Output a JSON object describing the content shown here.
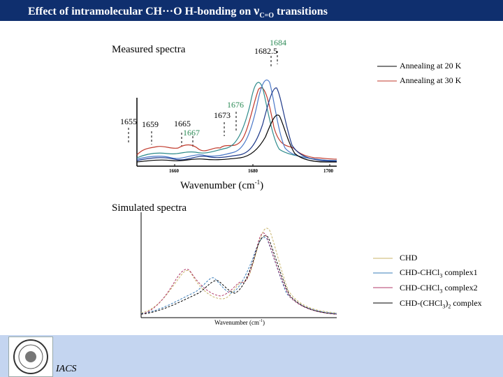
{
  "slide": {
    "title_main": "Effect of intramolecular CH···O H-bonding on ",
    "title_nu": "ν",
    "title_sub": "C=O",
    "title_end": " transitions"
  },
  "measured": {
    "label": "Measured spectra",
    "xlabel": "Wavenumber (cm",
    "xlabel_sup": "-1",
    "xlabel_end": ")",
    "ticks": [
      "1660",
      "1680",
      "1700"
    ],
    "annotations": {
      "a1684": "1684",
      "a1682_5": "1682.5",
      "a1676": "1676",
      "a1673": "1673",
      "a1655": "1655",
      "a1659": "1659",
      "a1665": "1665",
      "a1667": "1667"
    },
    "legend": [
      "Annealing at 20 K",
      "Annealing at 30 K"
    ],
    "colors": {
      "black": "#000000",
      "red": "#c0392b",
      "navy": "#1f3a8a",
      "blue": "#4a78c8",
      "teal": "#2e8b8b"
    }
  },
  "simulated": {
    "label": "Simulated spectra",
    "xlabel": "Wavenumber (cm",
    "xlabel_sup": "-1",
    "xlabel_end": ")",
    "legend": [
      "CHD",
      "CHD-CHCl",
      "3",
      " complex1",
      "CHD-CHCl",
      "3",
      " complex2",
      "CHD-(CHCl",
      "3",
      ")",
      "2",
      " complex"
    ],
    "colors": {
      "CHD": "#c8b46a",
      "complex1": "#3a7cb8",
      "complex2": "#b03a6a",
      "complex3": "#000000"
    }
  },
  "footer": {
    "org": "IACS"
  },
  "chart_data": [
    {
      "type": "line",
      "title": "Measured spectra",
      "xlabel": "Wavenumber (cm-1)",
      "xlim": [
        1650,
        1700
      ],
      "series": [
        {
          "name": "Annealing at 20 K",
          "peaks": [
            1684
          ]
        },
        {
          "name": "Annealing at 30 K",
          "peaks": [
            1682.5
          ]
        }
      ]
    },
    {
      "type": "line",
      "title": "Simulated spectra",
      "xlabel": "Wavenumber (cm-1)",
      "series": [
        {
          "name": "CHD"
        },
        {
          "name": "CHD-CHCl3 complex1"
        },
        {
          "name": "CHD-CHCl3 complex2"
        },
        {
          "name": "CHD-(CHCl3)2 complex"
        }
      ]
    }
  ]
}
